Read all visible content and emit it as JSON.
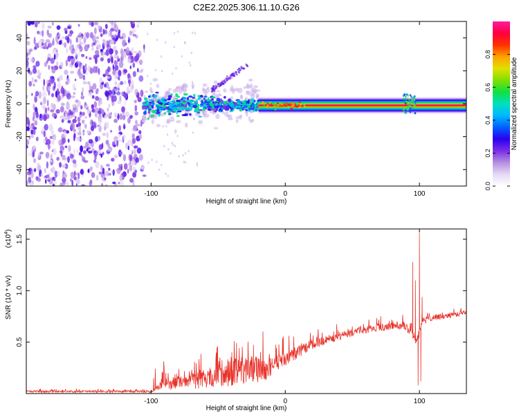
{
  "title": "C2E2.2025.306.11.10.G26",
  "chart_data": [
    {
      "type": "heatmap",
      "name": "spectrogram",
      "xlabel": "Height of straight line (km)",
      "ylabel": "Frequency (Hz)",
      "xlim": [
        -193,
        135
      ],
      "ylim": [
        -50,
        50
      ],
      "xticks": [
        -100,
        0,
        100
      ],
      "yticks": [
        -40,
        -20,
        0,
        20,
        40
      ],
      "colorbar": {
        "label": "Normalized spectral amplitude",
        "range": [
          0.0,
          1.0
        ],
        "ticks": [
          0.0,
          0.2,
          0.4,
          0.6,
          0.8
        ],
        "tick_labels": [
          "0.0",
          "0.2",
          "0.4",
          "0.6",
          "0.8"
        ],
        "colormap": [
          "#ffffff",
          "#e6d9f5",
          "#b58ee0",
          "#7b2ee6",
          "#2b00f0",
          "#0060ff",
          "#00b8ff",
          "#00e0c0",
          "#10e040",
          "#80e000",
          "#e0e000",
          "#ffa000",
          "#ff3000",
          "#ff0040",
          "#ff1aa0"
        ]
      },
      "regions": [
        {
          "label": "noise",
          "x_range": [
            -193,
            -105
          ],
          "freq_range": [
            -50,
            50
          ],
          "amplitude": 0.2
        },
        {
          "label": "clutter",
          "x_range": [
            -105,
            -20
          ],
          "freq_center": 0,
          "freq_spread": 6,
          "amplitude": 0.45
        },
        {
          "label": "branch",
          "x_range": [
            -55,
            -28
          ],
          "freq_range": [
            8,
            24
          ],
          "amplitude": 0.2
        },
        {
          "label": "line",
          "x_range": [
            -20,
            135
          ],
          "freq_center": -1,
          "amplitude": 0.95
        },
        {
          "label": "burst",
          "x_range": [
            88,
            97
          ],
          "freq_range": [
            -6,
            6
          ],
          "amplitude": 0.5
        }
      ]
    },
    {
      "type": "line",
      "name": "snr",
      "xlabel": "Height of straight line (km)",
      "ylabel": "SNR (10 * v/v)",
      "yscale_label": "(x10",
      "yscale_exponent": "4",
      "xlim": [
        -193,
        135
      ],
      "ylim": [
        0,
        1.6
      ],
      "xticks": [
        -100,
        0,
        100
      ],
      "yticks": [
        0.5,
        1.0,
        1.5
      ],
      "ytick_labels": [
        "0.5",
        "1.0",
        "1.5"
      ],
      "series_color": "#e8322a",
      "trend": {
        "x": [
          -193,
          -100,
          -95,
          -80,
          -60,
          -40,
          -25,
          -15,
          0,
          20,
          40,
          60,
          80,
          88,
          94,
          98,
          102,
          110,
          135
        ],
        "y": [
          0.02,
          0.02,
          0.06,
          0.1,
          0.14,
          0.2,
          0.24,
          0.22,
          0.34,
          0.48,
          0.56,
          0.62,
          0.66,
          0.66,
          0.6,
          0.5,
          0.7,
          0.74,
          0.78
        ]
      },
      "noise_amplitude": {
        "x": [
          -193,
          -100,
          -90,
          -70,
          -50,
          -30,
          -20,
          -10,
          0,
          20,
          60,
          88,
          100,
          104,
          135
        ],
        "y": [
          0.01,
          0.01,
          0.04,
          0.08,
          0.1,
          0.16,
          0.12,
          0.08,
          0.07,
          0.05,
          0.035,
          0.04,
          0.05,
          0.03,
          0.025
        ]
      },
      "spikes": [
        {
          "x": 95,
          "y": 1.28
        },
        {
          "x": 97,
          "y": 1.1
        },
        {
          "x": 99,
          "y": 0.08
        },
        {
          "x": 100,
          "y": 1.56
        },
        {
          "x": 101,
          "y": 0.12
        },
        {
          "x": 102,
          "y": 0.94
        }
      ]
    }
  ]
}
